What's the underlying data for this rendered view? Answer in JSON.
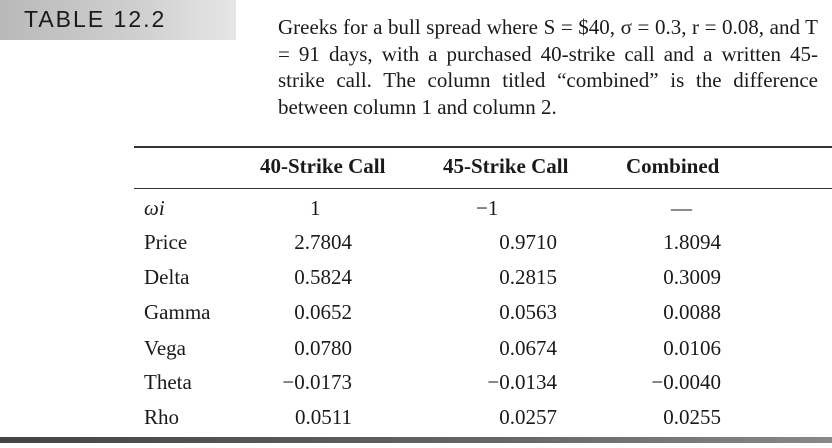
{
  "table_label": "TABLE 12.2",
  "caption": "Greeks for a bull spread where S = $40, σ = 0.3, r = 0.08, and T = 91 days, with a purchased 40-strike call and a written 45-strike call. The column titled “combined” is the difference between column 1 and column 2.",
  "columns": [
    "40-Strike Call",
    "45-Strike Call",
    "Combined"
  ],
  "weights_row": {
    "label": "ωi",
    "values": [
      "1",
      "−1",
      "—"
    ]
  },
  "rows": [
    {
      "label": "Price",
      "values": [
        "2.7804",
        "0.9710",
        "1.8094"
      ]
    },
    {
      "label": "Delta",
      "values": [
        "0.5824",
        "0.2815",
        "0.3009"
      ]
    },
    {
      "label": "Gamma",
      "values": [
        "0.0652",
        "0.0563",
        "0.0088"
      ]
    },
    {
      "label": "Vega",
      "values": [
        "0.0780",
        "0.0674",
        "0.0106"
      ]
    },
    {
      "label": "Theta",
      "values": [
        "−0.0173",
        "−0.0134",
        "−0.0040"
      ]
    },
    {
      "label": "Rho",
      "values": [
        "0.0511",
        "0.0257",
        "0.0255"
      ]
    }
  ]
}
